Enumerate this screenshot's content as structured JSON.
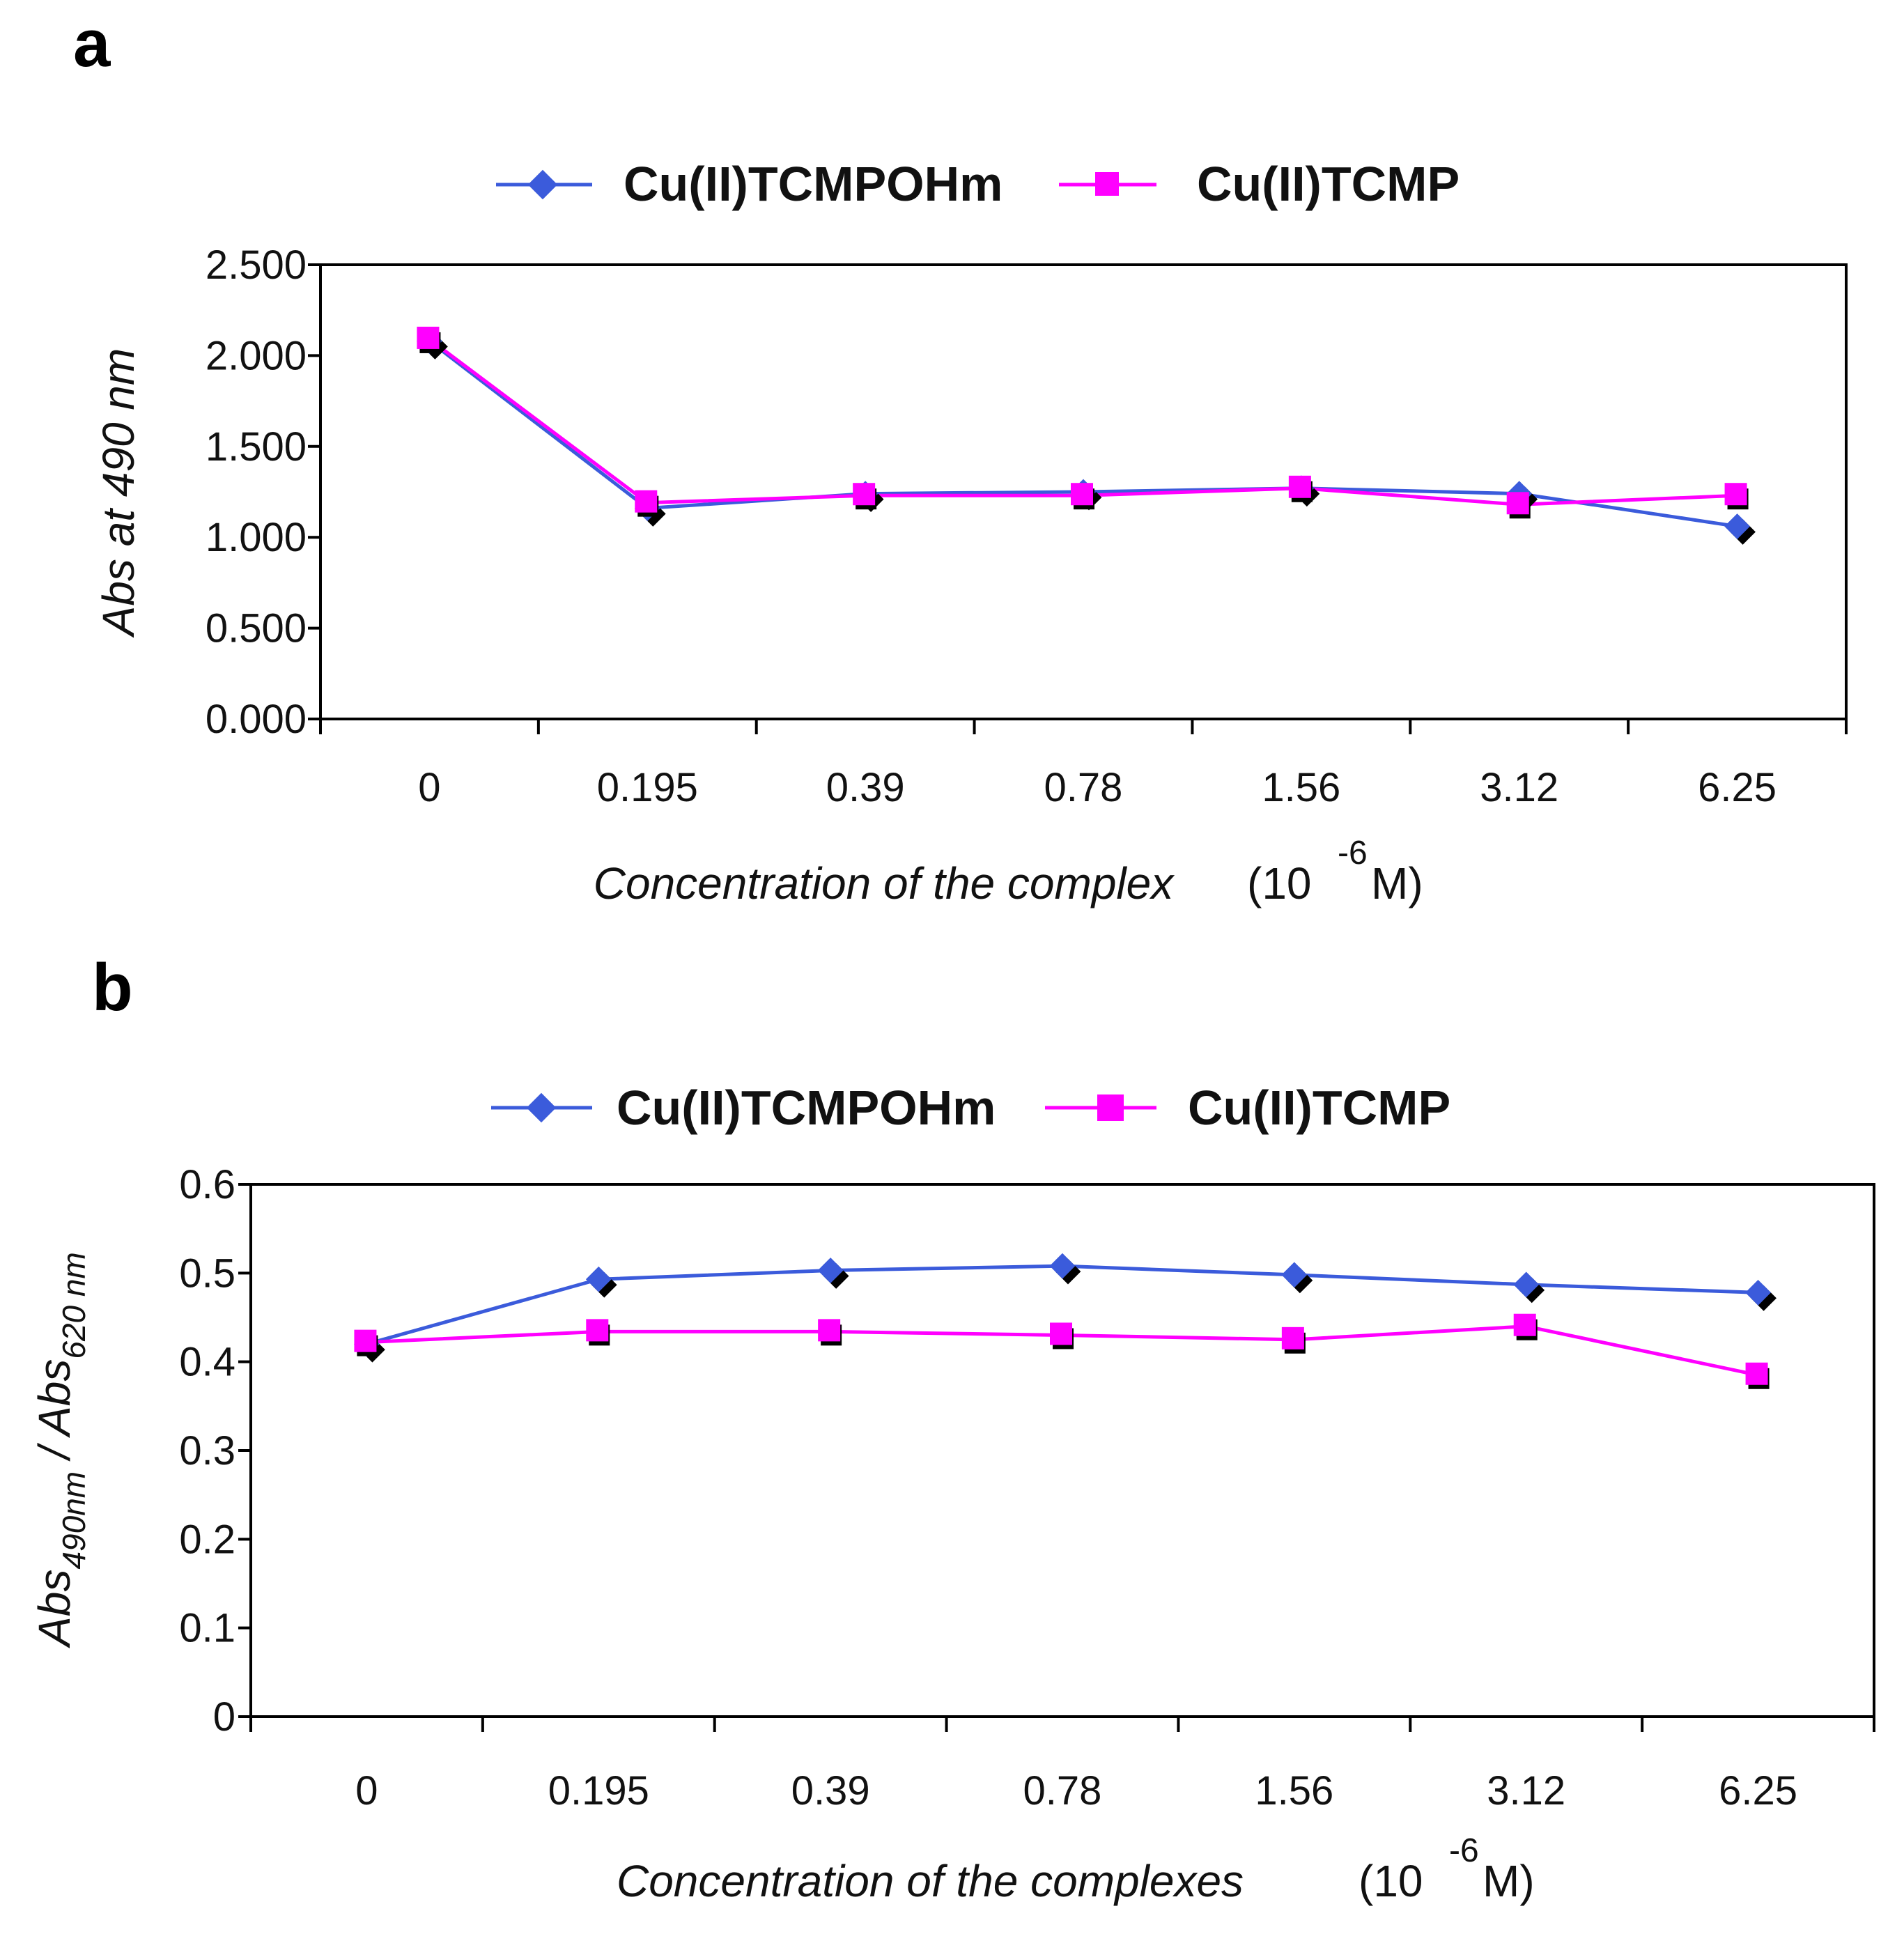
{
  "figure": {
    "panels": [
      "a",
      "b"
    ]
  },
  "legend": {
    "series1": "Cu(II)TCMPOHm",
    "series2": "Cu(II)TCMP"
  },
  "colors": {
    "series1": "#3b5bdb",
    "series2": "#ff00ff",
    "shadow": "#000000",
    "axis": "#000000"
  },
  "chart_data": [
    {
      "panel": "a",
      "type": "line",
      "title": "",
      "categories": [
        "0",
        "0.195",
        "0.39",
        "0.78",
        "1.56",
        "3.12",
        "6.25"
      ],
      "series": [
        {
          "name": "Cu(II)TCMPOHm",
          "values": [
            2.08,
            1.16,
            1.24,
            1.25,
            1.27,
            1.24,
            1.06
          ]
        },
        {
          "name": "Cu(II)TCMP",
          "values": [
            2.09,
            1.19,
            1.23,
            1.23,
            1.27,
            1.18,
            1.23
          ]
        }
      ],
      "ylim": [
        0,
        2.5
      ],
      "yticks": [
        "0.000",
        "0.500",
        "1.000",
        "1.500",
        "2.000",
        "2.500"
      ],
      "ylabel": "Abs at 490 nm",
      "xlabel": "Concentration of the complex",
      "xunit_open": "(10",
      "xunit_exp": "-6",
      "xunit_close": "M)",
      "legend_position": "top"
    },
    {
      "panel": "b",
      "type": "line",
      "title": "",
      "categories": [
        "0",
        "0.195",
        "0.39",
        "0.78",
        "1.56",
        "3.12",
        "6.25"
      ],
      "series": [
        {
          "name": "Cu(II)TCMPOHm",
          "values": [
            0.42,
            0.493,
            0.503,
            0.508,
            0.498,
            0.487,
            0.478
          ]
        },
        {
          "name": "Cu(II)TCMP",
          "values": [
            0.422,
            0.434,
            0.434,
            0.43,
            0.425,
            0.44,
            0.385
          ]
        }
      ],
      "ylim": [
        0,
        0.6
      ],
      "yticks": [
        "0",
        "0.1",
        "0.2",
        "0.3",
        "0.4",
        "0.5",
        "0.6"
      ],
      "ylabel_parts": [
        "Abs",
        "490nm",
        " / Abs",
        "620 nm"
      ],
      "xlabel": "Concentration of the complexes",
      "xunit_open": "(10",
      "xunit_exp": "-6",
      "xunit_close": "M)",
      "legend_position": "top"
    }
  ]
}
